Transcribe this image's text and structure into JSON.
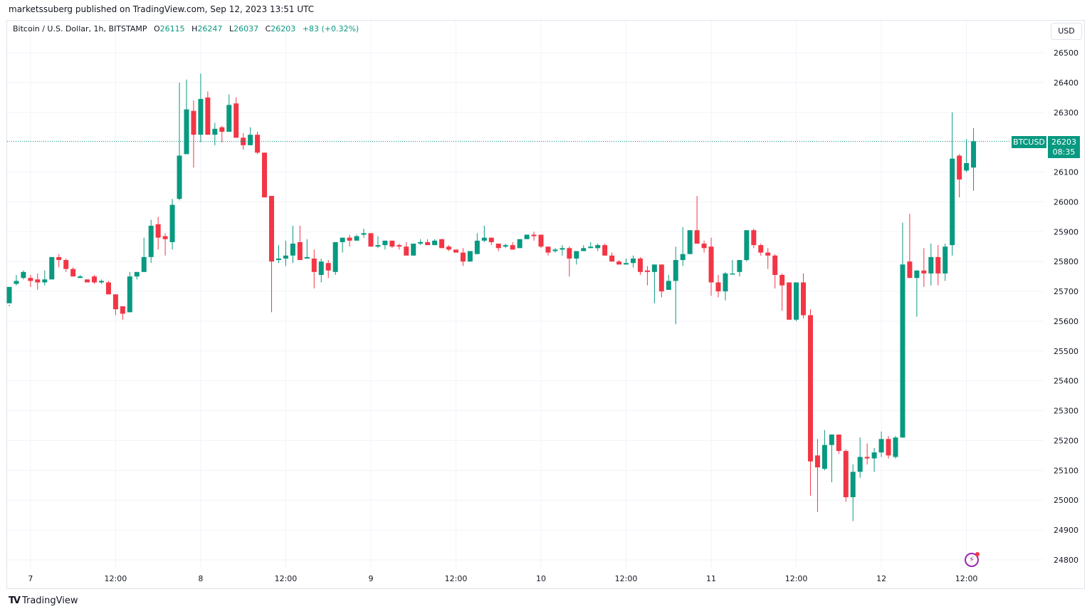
{
  "header": {
    "published": "marketssuberg published on TradingView.com, Sep 12, 2023 13:51 UTC"
  },
  "legend": {
    "symbol": "Bitcoin / U.S. Dollar, 1h, BITSTAMP",
    "open_label": "O",
    "open": "26115",
    "high_label": "H",
    "high": "26247",
    "low_label": "L",
    "low": "26037",
    "close_label": "C",
    "close": "26203",
    "change": "+83 (+0.32%)"
  },
  "currency_button": "USD",
  "price_tag": {
    "symbol": "BTCUSD",
    "price": "26203",
    "countdown": "08:35"
  },
  "footer": {
    "brand": "TradingView"
  },
  "colors": {
    "up": "#089981",
    "down": "#f23645",
    "grid": "#f0f3fa",
    "accent": "#9c27b0"
  },
  "chart_data": {
    "type": "candlestick",
    "title": "Bitcoin / U.S. Dollar, 1h, BITSTAMP",
    "xlabel": "",
    "ylabel": "USD",
    "ylim": [
      24780,
      26560
    ],
    "yticks": [
      26500,
      26400,
      26300,
      26200,
      26100,
      26000,
      25900,
      25800,
      25700,
      25600,
      25500,
      25400,
      25300,
      25200,
      25100,
      25000,
      24900,
      24800
    ],
    "yticks_shown": [
      26500,
      26400,
      26300,
      26100,
      26000,
      25900,
      25800,
      25700,
      25600,
      25500,
      25400,
      25300,
      25200,
      25100,
      25000,
      24900,
      24800
    ],
    "xticks": [
      {
        "label": "7",
        "index": 3
      },
      {
        "label": "12:00",
        "index": 15
      },
      {
        "label": "8",
        "index": 27
      },
      {
        "label": "12:00",
        "index": 39
      },
      {
        "label": "9",
        "index": 51
      },
      {
        "label": "12:00",
        "index": 63
      },
      {
        "label": "10",
        "index": 75
      },
      {
        "label": "12:00",
        "index": 87
      },
      {
        "label": "11",
        "index": 99
      },
      {
        "label": "12:00",
        "index": 111
      },
      {
        "label": "12",
        "index": 123
      },
      {
        "label": "12:00",
        "index": 135
      }
    ],
    "current_price": 26203,
    "candles": [
      [
        25660,
        25715,
        25655,
        25650
      ],
      [
        25725,
        25735,
        25755,
        25720
      ],
      [
        25745,
        25765,
        25770,
        25740
      ],
      [
        25745,
        25735,
        25755,
        25715
      ],
      [
        25740,
        25730,
        25760,
        25705
      ],
      [
        25730,
        25740,
        25770,
        25720
      ],
      [
        25740,
        25815,
        25815,
        25740
      ],
      [
        25815,
        25805,
        25825,
        25780
      ],
      [
        25805,
        25775,
        25810,
        25765
      ],
      [
        25775,
        25750,
        25780,
        25750
      ],
      [
        25745,
        25750,
        25755,
        25745
      ],
      [
        25740,
        25730,
        25740,
        25730
      ],
      [
        25750,
        25730,
        25755,
        25725
      ],
      [
        25730,
        25735,
        25740,
        25725
      ],
      [
        25730,
        25690,
        25735,
        25690
      ],
      [
        25690,
        25640,
        25690,
        25620
      ],
      [
        25650,
        25625,
        25650,
        25605
      ],
      [
        25630,
        25750,
        25765,
        25630
      ],
      [
        25750,
        25765,
        25765,
        25740
      ],
      [
        25765,
        25815,
        25880,
        25765
      ],
      [
        25815,
        25920,
        25940,
        25795
      ],
      [
        25925,
        25880,
        25950,
        25840
      ],
      [
        25885,
        25875,
        25895,
        25820
      ],
      [
        25865,
        25990,
        26010,
        25840
      ],
      [
        26010,
        26155,
        26400,
        26005
      ],
      [
        26160,
        26310,
        26410,
        26160
      ],
      [
        26305,
        26225,
        26340,
        26115
      ],
      [
        26225,
        26345,
        26430,
        26200
      ],
      [
        26350,
        26225,
        26370,
        26225
      ],
      [
        26225,
        26245,
        26265,
        26190
      ],
      [
        26250,
        26235,
        26255,
        26200
      ],
      [
        26235,
        26325,
        26360,
        26235
      ],
      [
        26330,
        26215,
        26350,
        26215
      ],
      [
        26215,
        26190,
        26230,
        26175
      ],
      [
        26190,
        26225,
        26250,
        26190
      ],
      [
        26225,
        26165,
        26235,
        26160
      ],
      [
        26165,
        26015,
        26165,
        26015
      ],
      [
        26020,
        25800,
        26020,
        25630
      ],
      [
        25805,
        25810,
        25855,
        25795
      ],
      [
        25810,
        25820,
        25870,
        25785
      ],
      [
        25820,
        25860,
        25920,
        25795
      ],
      [
        25865,
        25805,
        25920,
        25805
      ],
      [
        25810,
        25815,
        25875,
        25815
      ],
      [
        25810,
        25765,
        25840,
        25710
      ],
      [
        25755,
        25800,
        25810,
        25730
      ],
      [
        25795,
        25770,
        25805,
        25745
      ],
      [
        25765,
        25865,
        25865,
        25755
      ],
      [
        25865,
        25880,
        25880,
        25830
      ],
      [
        25880,
        25870,
        25890,
        25850
      ],
      [
        25870,
        25885,
        25890,
        25885
      ],
      [
        25890,
        25895,
        25910,
        25880
      ],
      [
        25895,
        25850,
        25895,
        25850
      ],
      [
        25850,
        25855,
        25885,
        25845
      ],
      [
        25855,
        25870,
        25870,
        25840
      ],
      [
        25870,
        25850,
        25870,
        25845
      ],
      [
        25855,
        25850,
        25860,
        25840
      ],
      [
        25850,
        25820,
        25865,
        25820
      ],
      [
        25820,
        25860,
        25860,
        25820
      ],
      [
        25860,
        25865,
        25875,
        25855
      ],
      [
        25865,
        25855,
        25875,
        25855
      ],
      [
        25855,
        25870,
        25875,
        25855
      ],
      [
        25875,
        25845,
        25875,
        25845
      ],
      [
        25850,
        25840,
        25855,
        25835
      ],
      [
        25840,
        25830,
        25840,
        25830
      ],
      [
        25830,
        25800,
        25845,
        25785
      ],
      [
        25800,
        25835,
        25835,
        25800
      ],
      [
        25825,
        25870,
        25895,
        25825
      ],
      [
        25870,
        25880,
        25920,
        25865
      ],
      [
        25880,
        25865,
        25880,
        25855
      ],
      [
        25860,
        25845,
        25860,
        25835
      ],
      [
        25850,
        25855,
        25860,
        25845
      ],
      [
        25855,
        25840,
        25865,
        25840
      ],
      [
        25845,
        25875,
        25875,
        25845
      ],
      [
        25875,
        25890,
        25890,
        25880
      ],
      [
        25890,
        25885,
        25900,
        25870
      ],
      [
        25890,
        25850,
        25890,
        25845
      ],
      [
        25850,
        25830,
        25850,
        25820
      ],
      [
        25835,
        25840,
        25845,
        25830
      ],
      [
        25840,
        25845,
        25855,
        25820
      ],
      [
        25845,
        25810,
        25850,
        25750
      ],
      [
        25810,
        25835,
        25835,
        25790
      ],
      [
        25835,
        25845,
        25855,
        25840
      ],
      [
        25845,
        25850,
        25865,
        25850
      ],
      [
        25845,
        25855,
        25860,
        25835
      ],
      [
        25855,
        25820,
        25860,
        25820
      ],
      [
        25820,
        25800,
        25830,
        25800
      ],
      [
        25800,
        25790,
        25805,
        25790
      ],
      [
        25790,
        25795,
        25810,
        25795
      ],
      [
        25795,
        25810,
        25820,
        25780
      ],
      [
        25810,
        25765,
        25815,
        25755
      ],
      [
        25770,
        25765,
        25785,
        25720
      ],
      [
        25765,
        25790,
        25790,
        25660
      ],
      [
        25790,
        25700,
        25790,
        25680
      ],
      [
        25705,
        25735,
        25755,
        25705
      ],
      [
        25735,
        25805,
        25850,
        25590
      ],
      [
        25805,
        25825,
        25915,
        25785
      ],
      [
        25825,
        25905,
        25905,
        25900
      ],
      [
        25905,
        25860,
        26020,
        25860
      ],
      [
        25860,
        25845,
        25870,
        25830
      ],
      [
        25850,
        25730,
        25880,
        25685
      ],
      [
        25730,
        25700,
        25755,
        25680
      ],
      [
        25700,
        25760,
        25765,
        25670
      ],
      [
        25760,
        25760,
        25805,
        25760
      ],
      [
        25765,
        25805,
        25805,
        25750
      ],
      [
        25805,
        25905,
        25905,
        25800
      ],
      [
        25905,
        25855,
        25910,
        25845
      ],
      [
        25855,
        25830,
        25860,
        25820
      ],
      [
        25830,
        25820,
        25845,
        25775
      ],
      [
        25820,
        25755,
        25825,
        25710
      ],
      [
        25755,
        25720,
        25760,
        25635
      ],
      [
        25730,
        25605,
        25730,
        25605
      ],
      [
        25605,
        25730,
        25730,
        25600
      ],
      [
        25730,
        25620,
        25760,
        25610
      ],
      [
        25620,
        25130,
        25640,
        25015
      ],
      [
        25150,
        25110,
        25205,
        24960
      ],
      [
        25105,
        25185,
        25235,
        25100
      ],
      [
        25185,
        25220,
        25220,
        25060
      ],
      [
        25220,
        25165,
        25220,
        25155
      ],
      [
        25165,
        25010,
        25170,
        24995
      ],
      [
        25010,
        25095,
        25120,
        24930
      ],
      [
        25095,
        25145,
        25210,
        25075
      ],
      [
        25145,
        25140,
        25190,
        25120
      ],
      [
        25140,
        25160,
        25175,
        25095
      ],
      [
        25160,
        25205,
        25230,
        25145
      ],
      [
        25205,
        25150,
        25215,
        25140
      ],
      [
        25145,
        25210,
        25215,
        25140
      ],
      [
        25210,
        25790,
        25930,
        25210
      ],
      [
        25800,
        25745,
        25960,
        25745
      ],
      [
        25745,
        25770,
        25770,
        25615
      ],
      [
        25770,
        25760,
        25845,
        25715
      ],
      [
        25760,
        25815,
        25860,
        25720
      ],
      [
        25815,
        25760,
        25855,
        25720
      ],
      [
        25760,
        25850,
        25860,
        25735
      ],
      [
        25855,
        26145,
        26300,
        25820
      ],
      [
        26155,
        26075,
        26160,
        26015
      ],
      [
        26105,
        26130,
        26210,
        26100
      ],
      [
        26115,
        26203,
        26247,
        26037
      ]
    ]
  }
}
